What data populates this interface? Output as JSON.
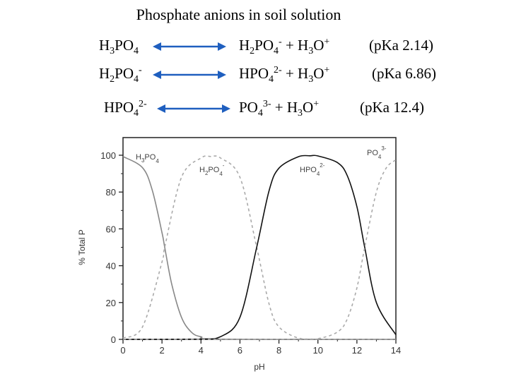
{
  "title": "Phosphate anions in soil solution",
  "equilibria": [
    {
      "left": {
        "base": "H",
        "s1": "3",
        "mid": "PO",
        "s2": "4",
        "sup": ""
      },
      "right": {
        "base": "H",
        "s1": "2",
        "mid": "PO",
        "s2": "4",
        "sup": "-",
        "plus": " + H",
        "s3": "3",
        "o": "O",
        "sup2": "+"
      },
      "pka": "(pKa 2.14)"
    },
    {
      "left": {
        "base": "H",
        "s1": "2",
        "mid": "PO",
        "s2": "4",
        "sup": "-"
      },
      "right": {
        "base": "HPO",
        "s1": "",
        "mid": "",
        "s2": "4",
        "sup": "2-",
        "plus": " + H",
        "s3": "3",
        "o": "O",
        "sup2": "+"
      },
      "pka": "(pKa 6.86)"
    },
    {
      "left": {
        "base": "HPO",
        "s1": "",
        "mid": "",
        "s2": "4",
        "sup": "2-"
      },
      "right": {
        "base": "PO",
        "s1": "",
        "mid": "",
        "s2": "4",
        "sup": "3-",
        "plus": " + H",
        "s3": "3",
        "o": "O",
        "sup2": "+"
      },
      "pka": "(pKa 12.4)"
    }
  ],
  "colors": {
    "arrow": "#1f5fbf",
    "curve_solid": "#888888",
    "curve_dark": "#111111",
    "curve_dashed": "#aaaaaa"
  },
  "chart_data": {
    "type": "line",
    "xlabel": "pH",
    "ylabel": "% Total P",
    "xlim": [
      0,
      14
    ],
    "ylim": [
      0,
      100
    ],
    "xticks": [
      "0",
      "2",
      "4",
      "6",
      "8",
      "10",
      "12",
      "14"
    ],
    "yticks": [
      "0",
      "20",
      "40",
      "60",
      "80",
      "100"
    ],
    "pKa": [
      2.14,
      6.86,
      12.4
    ],
    "series": [
      {
        "name": "H3PO4",
        "label_base": "H",
        "label_sub1": "3",
        "label_mid": "PO",
        "label_sub2": "4",
        "label_sup": "",
        "style": "solid",
        "color": "#888888",
        "x": [
          0,
          1,
          1.5,
          2,
          2.14,
          2.5,
          3,
          3.5,
          4,
          5,
          14
        ],
        "y": [
          99.3,
          93.2,
          81,
          58,
          50,
          30,
          12,
          4,
          1.4,
          0.1,
          0
        ]
      },
      {
        "name": "H2PO4-",
        "label_base": "H",
        "label_sub1": "2",
        "label_mid": "PO",
        "label_sub2": "4",
        "label_sup": "-",
        "style": "dashed",
        "color": "#aaaaaa",
        "x": [
          0,
          1,
          2,
          2.14,
          3,
          4,
          4.5,
          5,
          6,
          6.86,
          7.5,
          8,
          9,
          10,
          14
        ],
        "y": [
          0.7,
          6.8,
          42,
          50,
          88,
          98.5,
          99.3,
          98.5,
          88,
          50,
          19,
          6.8,
          0.7,
          0.1,
          0
        ]
      },
      {
        "name": "HPO42-",
        "label_base": "HPO",
        "label_sub1": "",
        "label_mid": "",
        "label_sub2": "4",
        "label_sup": "2-",
        "style": "solid",
        "color": "#111111",
        "x": [
          0,
          4,
          5,
          6,
          6.86,
          7.5,
          8,
          9,
          9.6,
          10,
          11,
          11.5,
          12,
          12.4,
          13,
          14
        ],
        "y": [
          0,
          0.1,
          1.4,
          12,
          50,
          81,
          93,
          99.2,
          99.7,
          99.6,
          96,
          89,
          72,
          50,
          20,
          2.5
        ]
      },
      {
        "name": "PO43-",
        "label_base": "PO",
        "label_sub1": "",
        "label_mid": "",
        "label_sub2": "4",
        "label_sup": "3-",
        "style": "dashed",
        "color": "#aaaaaa",
        "x": [
          0,
          9,
          10,
          11,
          11.5,
          12,
          12.4,
          13,
          13.5,
          14
        ],
        "y": [
          0,
          0.1,
          0.4,
          4,
          11,
          28,
          50,
          80,
          93,
          97.5
        ]
      }
    ]
  }
}
